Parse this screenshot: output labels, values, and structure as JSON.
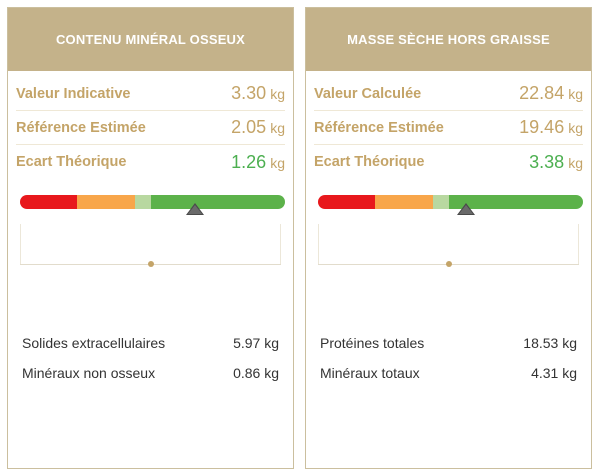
{
  "cards": [
    {
      "title": "CONTENU MINÉRAL OSSEUX",
      "metrics": [
        {
          "label": "Valeur Indicative",
          "value": "3.30",
          "unit": "kg"
        },
        {
          "label": "Référence Estimée",
          "value": "2.05",
          "unit": "kg"
        },
        {
          "label": "Ecart Théorique",
          "value": "1.26",
          "unit": "kg"
        }
      ],
      "gauge_marker_fraction": 0.66,
      "details": [
        {
          "label": "Solides extracellulaires",
          "value": "5.97 kg"
        },
        {
          "label": "Minéraux non osseux",
          "value": "0.86 kg"
        }
      ]
    },
    {
      "title": "MASSE SÈCHE HORS GRAISSE",
      "metrics": [
        {
          "label": "Valeur Calculée",
          "value": "22.84",
          "unit": "kg"
        },
        {
          "label": "Référence Estimée",
          "value": "19.46",
          "unit": "kg"
        },
        {
          "label": "Ecart Théorique",
          "value": "3.38",
          "unit": "kg"
        }
      ],
      "gauge_marker_fraction": 0.56,
      "details": [
        {
          "label": "Protéines totales",
          "value": "18.53 kg"
        },
        {
          "label": "Minéraux totaux",
          "value": "4.31 kg"
        }
      ]
    }
  ],
  "colors": {
    "header": "#c4b28a",
    "label": "#c4a468",
    "positive": "#4caf50",
    "gauge_red": "#e8181c",
    "gauge_orange": "#f8a64a",
    "gauge_light": "#b8d8a0",
    "gauge_green": "#5cb24a"
  }
}
